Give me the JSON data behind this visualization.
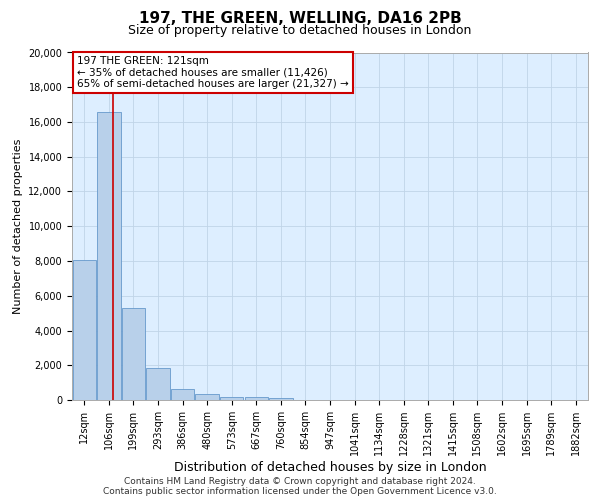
{
  "title": "197, THE GREEN, WELLING, DA16 2PB",
  "subtitle": "Size of property relative to detached houses in London",
  "xlabel": "Distribution of detached houses by size in London",
  "ylabel": "Number of detached properties",
  "bar_color": "#b8d0ea",
  "bar_edge_color": "#6699cc",
  "vline_color": "#cc0000",
  "annotation_line1": "197 THE GREEN: 121sqm",
  "annotation_line2": "← 35% of detached houses are smaller (11,426)",
  "annotation_line3": "65% of semi-detached houses are larger (21,327) →",
  "footer_line1": "Contains HM Land Registry data © Crown copyright and database right 2024.",
  "footer_line2": "Contains public sector information licensed under the Open Government Licence v3.0.",
  "categories": [
    "12sqm",
    "106sqm",
    "199sqm",
    "293sqm",
    "386sqm",
    "480sqm",
    "573sqm",
    "667sqm",
    "760sqm",
    "854sqm",
    "947sqm",
    "1041sqm",
    "1134sqm",
    "1228sqm",
    "1321sqm",
    "1415sqm",
    "1508sqm",
    "1602sqm",
    "1695sqm",
    "1789sqm",
    "1882sqm"
  ],
  "values": [
    8050,
    16600,
    5300,
    1850,
    650,
    320,
    200,
    185,
    130,
    0,
    0,
    0,
    0,
    0,
    0,
    0,
    0,
    0,
    0,
    0,
    0
  ],
  "ylim": [
    0,
    20000
  ],
  "yticks": [
    0,
    2000,
    4000,
    6000,
    8000,
    10000,
    12000,
    14000,
    16000,
    18000,
    20000
  ],
  "axes_bg": "#ddeeff",
  "grid_color": "#c0d4e8",
  "title_fontsize": 11,
  "subtitle_fontsize": 9,
  "ylabel_fontsize": 8,
  "xlabel_fontsize": 9,
  "tick_fontsize": 7,
  "annot_fontsize": 7.5,
  "footer_fontsize": 6.5,
  "vline_x": 1.16
}
